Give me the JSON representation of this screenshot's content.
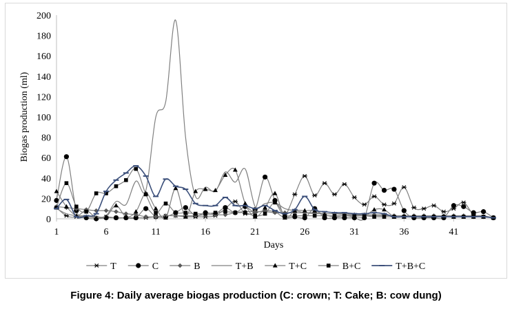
{
  "caption": "Figure 4: Daily average biogas production (C: crown; T: Cake; B: cow dung)",
  "chart_data": {
    "type": "line",
    "title": "",
    "xlabel": "Days",
    "ylabel": "Biogas production (ml)",
    "xlim": [
      1,
      45
    ],
    "ylim": [
      0,
      200
    ],
    "x_ticks": [
      1,
      6,
      11,
      16,
      21,
      26,
      31,
      36,
      41
    ],
    "y_ticks": [
      0,
      20,
      40,
      60,
      80,
      100,
      120,
      140,
      160,
      180,
      200
    ],
    "grid": false,
    "legend_position": "bottom",
    "x": [
      1,
      2,
      3,
      4,
      5,
      6,
      7,
      8,
      9,
      10,
      11,
      12,
      13,
      14,
      15,
      16,
      17,
      18,
      19,
      20,
      21,
      22,
      23,
      24,
      25,
      26,
      27,
      28,
      29,
      30,
      31,
      32,
      33,
      34,
      35,
      36,
      37,
      38,
      39,
      40,
      41,
      42,
      43,
      44,
      45
    ],
    "series": [
      {
        "name": "T",
        "marker": "asterisk",
        "line_color": "#7f7f7f",
        "marker_color": "#000000",
        "values": [
          11,
          3,
          2,
          8,
          1,
          2,
          1,
          1,
          1,
          1,
          2,
          3,
          3,
          2,
          2,
          2,
          3,
          10,
          17,
          5,
          6,
          8,
          7,
          3,
          24,
          42,
          23,
          35,
          24,
          34,
          21,
          14,
          22,
          14,
          15,
          31,
          11,
          10,
          13,
          7,
          10,
          16,
          4,
          2,
          1
        ]
      },
      {
        "name": "C",
        "marker": "circle",
        "line_color": "#7f7f7f",
        "marker_color": "#000000",
        "values": [
          18,
          61,
          8,
          1,
          0,
          1,
          1,
          1,
          1,
          10,
          2,
          2,
          6,
          11,
          3,
          6,
          5,
          11,
          6,
          12,
          9,
          41,
          18,
          2,
          2,
          1,
          10,
          1,
          1,
          1,
          1,
          1,
          35,
          28,
          29,
          8,
          1,
          1,
          1,
          1,
          13,
          12,
          6,
          7,
          1
        ]
      },
      {
        "name": "B",
        "marker": "diamond",
        "line_color": "#7f7f7f",
        "marker_color": "#595959",
        "values": [
          12,
          11,
          10,
          9,
          8,
          8,
          7,
          5,
          4,
          2,
          2,
          3,
          3,
          3,
          3,
          4,
          4,
          4,
          6,
          7,
          7,
          7,
          6,
          6,
          6,
          6,
          6,
          5,
          5,
          4,
          4,
          4,
          4,
          4,
          3,
          3,
          3,
          3,
          3,
          3,
          3,
          3,
          2,
          2,
          1
        ]
      },
      {
        "name": "T+B",
        "marker": "none",
        "line_color": "#808080",
        "marker_color": "#808080",
        "values": [
          10,
          5,
          3,
          3,
          2,
          3,
          17,
          14,
          37,
          28,
          100,
          115,
          195,
          80,
          22,
          31,
          27,
          46,
          36,
          49,
          12,
          15,
          16,
          10,
          8,
          6,
          5,
          5,
          5,
          5,
          4,
          3,
          3,
          3,
          3,
          3,
          3,
          3,
          3,
          3,
          3,
          3,
          3,
          3,
          1
        ]
      },
      {
        "name": "T+C",
        "marker": "triangle",
        "line_color": "#7f7f7f",
        "marker_color": "#000000",
        "values": [
          27,
          12,
          3,
          2,
          1,
          2,
          13,
          2,
          7,
          25,
          10,
          1,
          30,
          2,
          27,
          29,
          28,
          43,
          48,
          15,
          2,
          11,
          25,
          1,
          8,
          8,
          8,
          4,
          2,
          3,
          2,
          2,
          9,
          9,
          2,
          2,
          2,
          2,
          2,
          2,
          2,
          2,
          2,
          2,
          1
        ]
      },
      {
        "name": "B+C",
        "marker": "square",
        "line_color": "#7f7f7f",
        "marker_color": "#000000",
        "values": [
          11,
          35,
          12,
          7,
          25,
          25,
          32,
          38,
          49,
          24,
          6,
          15,
          6,
          6,
          5,
          5,
          6,
          7,
          6,
          6,
          3,
          5,
          16,
          4,
          3,
          3,
          3,
          3,
          3,
          3,
          3,
          3,
          2,
          2,
          2,
          2,
          2,
          2,
          2,
          2,
          2,
          2,
          2,
          2,
          1
        ]
      },
      {
        "name": "T+B+C",
        "marker": "dash",
        "line_color": "#3b4f7a",
        "marker_color": "#3b4f7a",
        "values": [
          10,
          19,
          2,
          3,
          5,
          27,
          38,
          45,
          52,
          42,
          22,
          39,
          32,
          29,
          15,
          13,
          13,
          21,
          13,
          13,
          10,
          13,
          8,
          5,
          9,
          22,
          9,
          7,
          6,
          6,
          5,
          5,
          6,
          5,
          2,
          2,
          2,
          2,
          2,
          2,
          2,
          2,
          2,
          2,
          1
        ]
      }
    ]
  }
}
